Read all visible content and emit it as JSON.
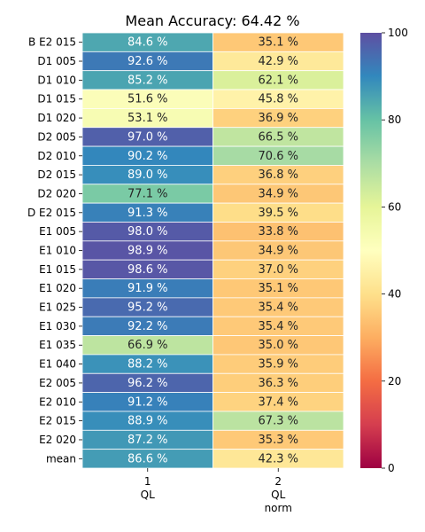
{
  "chart_data": {
    "type": "heatmap",
    "title": "Mean Accuracy: 64.42 %",
    "rows": [
      "B E2 015",
      "D1 005",
      "D1 010",
      "D1 015",
      "D1 020",
      "D2 005",
      "D2 010",
      "D2 015",
      "D2 020",
      "D E2 015",
      "E1 005",
      "E1 010",
      "E1 015",
      "E1 020",
      "E1 025",
      "E1 030",
      "E1 035",
      "E1 040",
      "E2 005",
      "E2 010",
      "E2 015",
      "E2 020",
      "mean"
    ],
    "columns": [
      {
        "index": "1",
        "label_lines": [
          "1",
          "QL"
        ]
      },
      {
        "index": "2",
        "label_lines": [
          "2",
          "QL",
          "norm"
        ]
      }
    ],
    "values": [
      [
        84.6,
        35.1
      ],
      [
        92.6,
        42.9
      ],
      [
        85.2,
        62.1
      ],
      [
        51.6,
        45.8
      ],
      [
        53.1,
        36.9
      ],
      [
        97.0,
        66.5
      ],
      [
        90.2,
        70.6
      ],
      [
        89.0,
        36.8
      ],
      [
        77.1,
        34.9
      ],
      [
        91.3,
        39.5
      ],
      [
        98.0,
        33.8
      ],
      [
        98.9,
        34.9
      ],
      [
        98.6,
        37.0
      ],
      [
        91.9,
        35.1
      ],
      [
        95.2,
        35.4
      ],
      [
        92.2,
        35.4
      ],
      [
        66.9,
        35.0
      ],
      [
        88.2,
        35.9
      ],
      [
        96.2,
        36.3
      ],
      [
        91.2,
        37.4
      ],
      [
        88.9,
        67.3
      ],
      [
        87.2,
        35.3
      ],
      [
        86.6,
        42.3
      ]
    ],
    "value_suffix": " %",
    "colormap": "Spectral",
    "colorbar": {
      "min": 0,
      "max": 100,
      "ticks": [
        0,
        20,
        40,
        60,
        80,
        100
      ],
      "position": "right"
    },
    "grid": true
  }
}
